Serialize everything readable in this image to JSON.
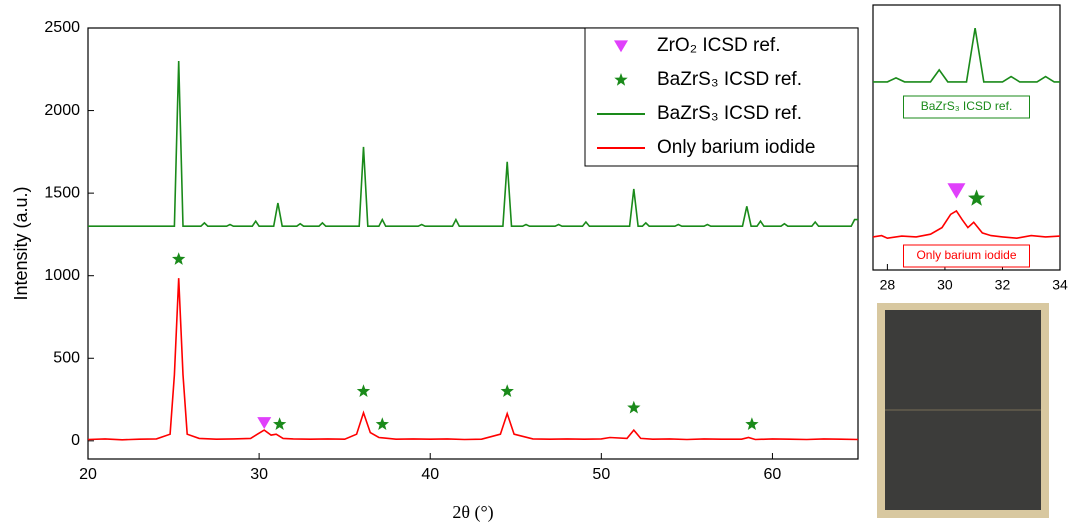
{
  "chart_data": [
    {
      "type": "line",
      "ylabel": "Intensity (a.u.)",
      "xlabel": "2θ (°)",
      "xlim": [
        20,
        65
      ],
      "ylim": [
        -110,
        2500
      ],
      "xticks": [
        20,
        30,
        40,
        50,
        60
      ],
      "yticks": [
        0,
        500,
        1000,
        1500,
        2000,
        2500
      ],
      "legend": "upper right",
      "series": [
        {
          "name": "ZrO₂ ICSD ref.",
          "type": "scatter",
          "marker": "triangle",
          "color": "#e040fb",
          "x": [
            30.3
          ],
          "values": [
            110
          ]
        },
        {
          "name": "BaZrS₃ ICSD ref.",
          "type": "scatter",
          "marker": "star",
          "color": "#1a8a1a",
          "x": [
            25.3,
            31.2,
            36.1,
            37.2,
            44.5,
            51.9,
            58.8
          ],
          "values": [
            1100,
            100,
            300,
            100,
            300,
            200,
            100
          ]
        },
        {
          "name": "BaZrS₃ ICSD ref.",
          "type": "line",
          "color": "#1a8a1a",
          "x": [
            20,
            25.05,
            25.3,
            25.55,
            26.6,
            26.8,
            27.0,
            28.1,
            28.3,
            28.5,
            29.6,
            29.8,
            30.0,
            30.85,
            31.1,
            31.35,
            32.2,
            32.4,
            32.6,
            33.5,
            33.7,
            33.9,
            35.85,
            36.1,
            36.35,
            37.0,
            37.2,
            37.4,
            39.3,
            39.5,
            39.7,
            41.3,
            41.5,
            41.7,
            44.25,
            44.5,
            44.75,
            45.4,
            45.6,
            45.8,
            47.3,
            47.5,
            47.7,
            48.9,
            49.1,
            49.3,
            51.65,
            51.9,
            52.15,
            52.4,
            52.6,
            52.8,
            54.3,
            54.5,
            54.7,
            56.0,
            56.2,
            56.4,
            58.25,
            58.5,
            58.75,
            59.1,
            59.3,
            59.5,
            60.5,
            60.7,
            60.9,
            62.3,
            62.5,
            62.7,
            64.6,
            64.8,
            65
          ],
          "values": [
            1300,
            1300,
            2300,
            1300,
            1300,
            1320,
            1300,
            1300,
            1310,
            1300,
            1300,
            1330,
            1300,
            1300,
            1440,
            1300,
            1300,
            1315,
            1300,
            1300,
            1320,
            1300,
            1300,
            1780,
            1300,
            1300,
            1340,
            1300,
            1300,
            1310,
            1300,
            1300,
            1340,
            1300,
            1300,
            1690,
            1300,
            1300,
            1310,
            1300,
            1300,
            1310,
            1300,
            1300,
            1325,
            1300,
            1300,
            1525,
            1300,
            1300,
            1320,
            1300,
            1300,
            1310,
            1300,
            1300,
            1310,
            1300,
            1300,
            1420,
            1300,
            1300,
            1330,
            1300,
            1300,
            1315,
            1300,
            1300,
            1325,
            1300,
            1300,
            1340,
            1340
          ]
        },
        {
          "name": "Only barium iodide",
          "type": "line",
          "color": "#ff0000",
          "x": [
            20,
            21,
            22,
            23,
            24,
            24.8,
            25.05,
            25.3,
            25.55,
            25.8,
            26.5,
            27.5,
            28.5,
            29.5,
            29.9,
            30.3,
            30.7,
            31.0,
            31.4,
            32,
            33,
            34,
            35,
            35.7,
            36.1,
            36.5,
            37,
            38,
            39,
            40,
            41,
            42,
            43,
            44.1,
            44.5,
            44.9,
            46,
            47,
            48,
            49,
            50,
            50.5,
            51.5,
            51.9,
            52.3,
            53,
            54,
            55,
            56,
            57,
            58.2,
            58.6,
            59.0,
            60,
            61,
            62,
            63,
            64,
            65
          ],
          "values": [
            8,
            12,
            6,
            10,
            12,
            40,
            400,
            985,
            400,
            40,
            15,
            10,
            12,
            15,
            40,
            65,
            35,
            40,
            15,
            12,
            10,
            12,
            10,
            40,
            170,
            50,
            20,
            10,
            12,
            10,
            12,
            8,
            10,
            40,
            165,
            40,
            12,
            10,
            12,
            10,
            12,
            20,
            15,
            65,
            15,
            10,
            12,
            8,
            12,
            10,
            10,
            20,
            8,
            12,
            10,
            8,
            12,
            10,
            8
          ]
        }
      ]
    },
    {
      "type": "line",
      "xlim": [
        27.5,
        34
      ],
      "ylim": [
        0,
        100
      ],
      "xticks": [
        28,
        30,
        32,
        34
      ],
      "legend": false,
      "annotations": [
        {
          "text": "BaZrS₃ ICSD ref.",
          "color": "#1a8a1a"
        },
        {
          "text": "Only barium iodide",
          "color": "#ff0000"
        }
      ],
      "series": [
        {
          "type": "line",
          "color": "#1a8a1a",
          "x": [
            27.5,
            28.0,
            28.3,
            28.6,
            29.5,
            29.8,
            30.1,
            30.75,
            31.05,
            31.35,
            32.0,
            32.3,
            32.6,
            33.2,
            33.5,
            33.8,
            34
          ],
          "values": [
            71,
            71,
            72.5,
            71,
            71,
            75.5,
            71,
            71,
            91.3,
            71,
            71,
            73,
            71,
            71,
            73,
            71,
            71
          ]
        },
        {
          "type": "line",
          "color": "#ff0000",
          "x": [
            27.5,
            27.8,
            28,
            28.5,
            29,
            29.5,
            29.9,
            30.2,
            30.4,
            30.6,
            30.8,
            31.0,
            31.3,
            31.6,
            32,
            32.5,
            33,
            33.5,
            34
          ],
          "values": [
            12.5,
            13,
            12,
            12.8,
            12.5,
            13.5,
            16,
            21,
            22.3,
            19,
            16,
            18,
            14,
            13,
            12.5,
            12,
            13,
            12.5,
            12.8
          ]
        },
        {
          "type": "scatter",
          "marker": "triangle",
          "color": "#e040fb",
          "x": [
            30.4
          ],
          "values": [
            30
          ]
        },
        {
          "type": "scatter",
          "marker": "star",
          "color": "#1a8a1a",
          "x": [
            31.1
          ],
          "values": [
            27
          ]
        }
      ]
    }
  ]
}
